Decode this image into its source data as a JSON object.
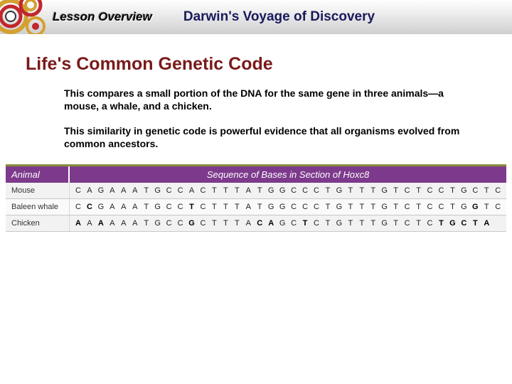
{
  "header": {
    "lesson_label": "Lesson Overview",
    "voyage_title": "Darwin's Voyage of Discovery"
  },
  "section": {
    "title": "Life's Common Genetic Code",
    "para1": "This compares a small portion of the DNA for the same gene in three animals—a mouse, a whale, and a chicken.",
    "para2": "This similarity in genetic code is powerful evidence that all organisms evolved from common ancestors."
  },
  "table": {
    "header_animal": "Animal",
    "header_seq": "Sequence of Bases in Section of Hoxc8",
    "reference": [
      "C",
      "A",
      "G",
      "A",
      "A",
      "A",
      "T",
      "G",
      "C",
      "C",
      "A",
      "C",
      "T",
      "T",
      "T",
      "A",
      "T",
      "G",
      "G",
      "C",
      "C",
      "C",
      "T",
      "G",
      "T",
      "T",
      "T",
      "G",
      "T",
      "C",
      "T",
      "C",
      "C",
      "T",
      "G",
      "C",
      "T",
      "C"
    ],
    "rows": [
      {
        "animal": "Mouse",
        "seq": [
          "C",
          "A",
          "G",
          "A",
          "A",
          "A",
          "T",
          "G",
          "C",
          "C",
          "A",
          "C",
          "T",
          "T",
          "T",
          "A",
          "T",
          "G",
          "G",
          "C",
          "C",
          "C",
          "T",
          "G",
          "T",
          "T",
          "T",
          "G",
          "T",
          "C",
          "T",
          "C",
          "C",
          "T",
          "G",
          "C",
          "T",
          "C"
        ]
      },
      {
        "animal": "Baleen whale",
        "seq": [
          "C",
          "C",
          "G",
          "A",
          "A",
          "A",
          "T",
          "G",
          "C",
          "C",
          "T",
          "C",
          "T",
          "T",
          "T",
          "A",
          "T",
          "G",
          "G",
          "C",
          "C",
          "C",
          "T",
          "G",
          "T",
          "T",
          "T",
          "G",
          "T",
          "C",
          "T",
          "C",
          "C",
          "T",
          "G",
          "G",
          "T",
          "C"
        ]
      },
      {
        "animal": "Chicken",
        "seq": [
          "A",
          "A",
          "A",
          "A",
          "A",
          "A",
          "T",
          "G",
          "C",
          "C",
          "G",
          "C",
          "T",
          "T",
          "T",
          "A",
          "C",
          "A",
          "G",
          "C",
          "T",
          "C",
          "T",
          "G",
          "T",
          "T",
          "T",
          "G",
          "T",
          "C",
          "T",
          "C",
          "T",
          "G",
          "C",
          "T",
          "A",
          " "
        ]
      }
    ]
  },
  "colors": {
    "title_color": "#7a1a1a",
    "voyage_color": "#1a1a5c",
    "table_header_bg": "#7d3a8c",
    "table_top_border": "#888e3c"
  }
}
